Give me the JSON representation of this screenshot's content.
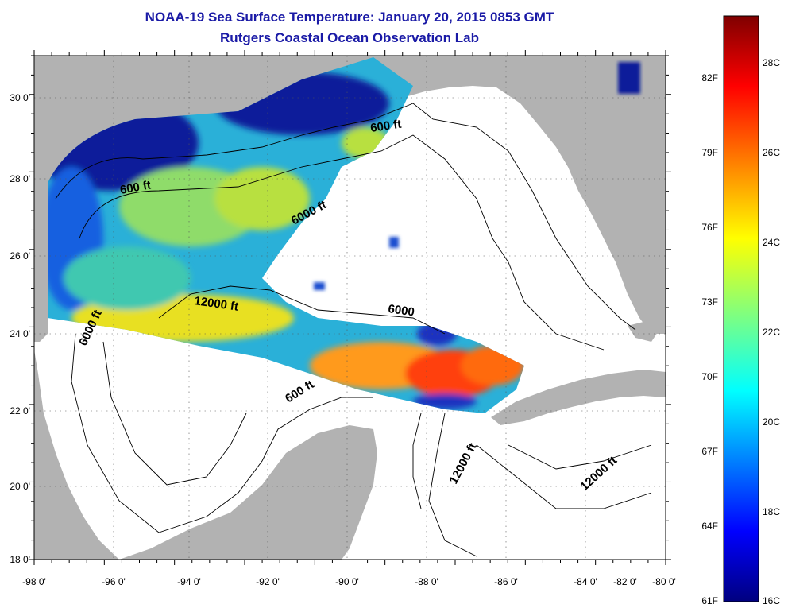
{
  "title": "NOAA-19 Sea Surface Temperature:  January 20, 2015 0853 GMT",
  "subtitle": "Rutgers Coastal Ocean Observation Lab",
  "map": {
    "lat_range": [
      18,
      31
    ],
    "lon_range": [
      -98,
      -80
    ],
    "lat_ticks": [
      "30 0'",
      "28 0'",
      "26 0'",
      "24 0'",
      "22 0'",
      "20 0'",
      "18 0'"
    ],
    "lon_ticks": [
      "-98 0'",
      "-96 0'",
      "-94 0'",
      "-92 0'",
      "-90 0'",
      "-88 0'",
      "-86 0'",
      "-84 0'",
      "-82 0'",
      "-80 0'"
    ],
    "contour_labels": [
      "600 ft",
      "600 ft",
      "6000 ft",
      "12000 ft",
      "6000 ft",
      "6000",
      "600 ft",
      "12000 ft",
      "12000 ft"
    ],
    "colors": {
      "land": "#b2b2b2",
      "water": "#ffffff"
    }
  },
  "colorbar": {
    "fahrenheit": [
      "82F",
      "79F",
      "76F",
      "73F",
      "70F",
      "67F",
      "64F",
      "61F"
    ],
    "celsius": [
      "28C",
      "26C",
      "24C",
      "22C",
      "20C",
      "18C",
      "16C"
    ]
  }
}
